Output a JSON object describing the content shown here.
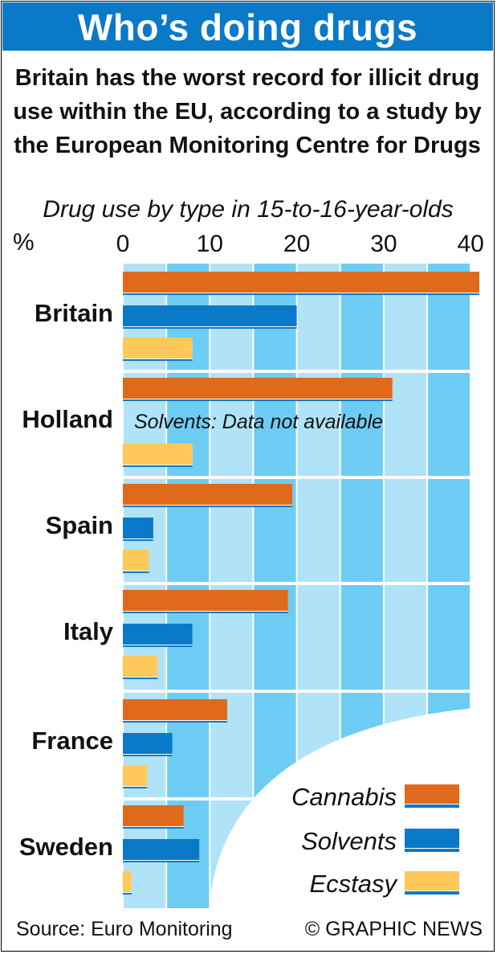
{
  "title": "Who’s doing drugs",
  "subtitle": "Britain has the worst record for illicit drug use within the EU, according to a study by the European Monitoring Centre for Drugs",
  "colors": {
    "title_bar": "#0a79c8",
    "cannabis": "#e06a1b",
    "solvents": "#0a79c8",
    "ecstasy": "#ffc85a",
    "band_dark": "#6dccf3",
    "band_light": "#b0e2f8"
  },
  "chart_data": {
    "type": "bar",
    "orientation": "horizontal",
    "title": "Drug use by type in 15-to-16-year-olds",
    "unit_label": "%",
    "xlim": [
      0,
      41
    ],
    "x_ticks": [
      0,
      10,
      20,
      30,
      40
    ],
    "categories": [
      "Britain",
      "Holland",
      "Spain",
      "Italy",
      "France",
      "Sweden"
    ],
    "series": [
      {
        "name": "Cannabis",
        "values": [
          41,
          31,
          19.5,
          19,
          12,
          7
        ]
      },
      {
        "name": "Solvents",
        "values": [
          20,
          null,
          3.5,
          8,
          5.7,
          8.8
        ]
      },
      {
        "name": "Ecstasy",
        "values": [
          8,
          8,
          3,
          4,
          2.8,
          1
        ]
      }
    ],
    "annotations": [
      {
        "category": "Holland",
        "series": "Solvents",
        "text": "Solvents: Data not available"
      }
    ],
    "legend": [
      "Cannabis",
      "Solvents",
      "Ecstasy"
    ],
    "legend_position": "bottom-right"
  },
  "footer": {
    "source": "Source: Euro Monitoring",
    "credit": "© GRAPHIC NEWS"
  }
}
